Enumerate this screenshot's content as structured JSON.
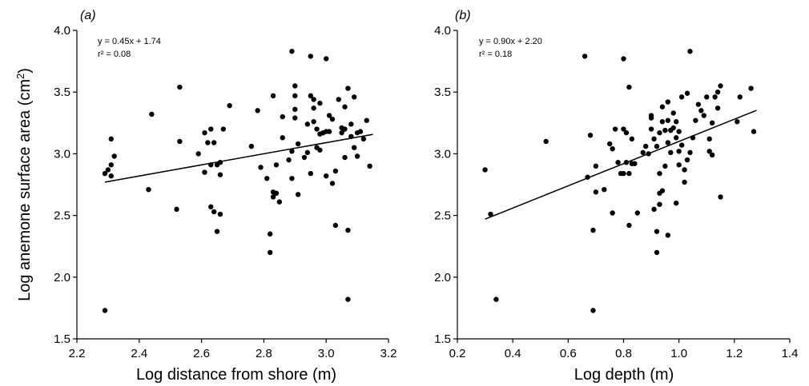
{
  "figure": {
    "ylabel": "Log anemone surface area (cm²)",
    "ylabel_base": "Log anemone surface area (cm",
    "ylabel_sup": "2",
    "ylabel_tail": ")"
  },
  "panels": [
    {
      "label": "(a)",
      "equation": "y = 0.45x + 1.74",
      "r2": "r² = 0.08",
      "xlabel": "Log distance from shore (m)"
    },
    {
      "label": "(b)",
      "equation": "y = 0.90x + 2.20",
      "r2": "r² = 0.18",
      "xlabel": "Log depth (m)"
    }
  ],
  "chart_data": [
    {
      "type": "scatter",
      "title": "(a)",
      "xlabel": "Log distance from shore (m)",
      "ylabel": "Log anemone surface area (cm²)",
      "xlim": [
        2.2,
        3.2
      ],
      "ylim": [
        1.5,
        4.0
      ],
      "xticks": [
        "2.2",
        "2.4",
        "2.6",
        "2.8",
        "3.0",
        "3.2"
      ],
      "yticks": [
        "1.5",
        "2.0",
        "2.5",
        "3.0",
        "3.5",
        "4.0"
      ],
      "grid": false,
      "annotations": [
        "y = 0.45x + 1.74",
        "r² = 0.08"
      ],
      "trendline": {
        "slope": 0.45,
        "intercept": 1.74,
        "x_range": [
          2.29,
          3.15
        ]
      },
      "points": [
        [
          2.29,
          1.73
        ],
        [
          2.29,
          2.84
        ],
        [
          2.3,
          2.87
        ],
        [
          2.31,
          2.91
        ],
        [
          2.31,
          2.82
        ],
        [
          2.31,
          3.12
        ],
        [
          2.32,
          2.98
        ],
        [
          2.43,
          2.71
        ],
        [
          2.44,
          3.32
        ],
        [
          2.52,
          2.55
        ],
        [
          2.53,
          3.1
        ],
        [
          2.53,
          3.54
        ],
        [
          2.59,
          3.0
        ],
        [
          2.61,
          2.85
        ],
        [
          2.61,
          3.17
        ],
        [
          2.62,
          3.09
        ],
        [
          2.63,
          3.2
        ],
        [
          2.63,
          2.57
        ],
        [
          2.63,
          2.91
        ],
        [
          2.64,
          3.09
        ],
        [
          2.64,
          2.53
        ],
        [
          2.65,
          2.37
        ],
        [
          2.65,
          2.91
        ],
        [
          2.66,
          2.51
        ],
        [
          2.66,
          2.83
        ],
        [
          2.66,
          2.93
        ],
        [
          2.67,
          3.2
        ],
        [
          2.69,
          3.39
        ],
        [
          2.76,
          3.06
        ],
        [
          2.78,
          3.35
        ],
        [
          2.79,
          2.89
        ],
        [
          2.81,
          2.8
        ],
        [
          2.82,
          2.2
        ],
        [
          2.82,
          2.35
        ],
        [
          2.83,
          2.65
        ],
        [
          2.83,
          2.69
        ],
        [
          2.84,
          2.68
        ],
        [
          2.83,
          3.47
        ],
        [
          2.84,
          2.91
        ],
        [
          2.85,
          2.61
        ],
        [
          2.86,
          3.13
        ],
        [
          2.86,
          3.3
        ],
        [
          2.88,
          2.95
        ],
        [
          2.89,
          3.83
        ],
        [
          2.89,
          3.02
        ],
        [
          2.89,
          2.8
        ],
        [
          2.9,
          3.55
        ],
        [
          2.9,
          3.47
        ],
        [
          2.9,
          3.36
        ],
        [
          2.9,
          3.29
        ],
        [
          2.91,
          2.67
        ],
        [
          2.91,
          3.08
        ],
        [
          2.93,
          2.97
        ],
        [
          2.94,
          3.24
        ],
        [
          2.94,
          3.01
        ],
        [
          2.95,
          3.79
        ],
        [
          2.95,
          2.84
        ],
        [
          2.95,
          3.47
        ],
        [
          2.96,
          3.44
        ],
        [
          2.96,
          3.37
        ],
        [
          2.96,
          3.26
        ],
        [
          2.97,
          3.2
        ],
        [
          2.97,
          3.05
        ],
        [
          2.98,
          3.16
        ],
        [
          2.98,
          3.03
        ],
        [
          2.98,
          3.41
        ],
        [
          2.99,
          3.17
        ],
        [
          3.0,
          3.77
        ],
        [
          3.0,
          3.18
        ],
        [
          3.0,
          2.82
        ],
        [
          3.01,
          3.18
        ],
        [
          3.01,
          3.31
        ],
        [
          3.02,
          3.28
        ],
        [
          3.02,
          2.76
        ],
        [
          3.03,
          2.86
        ],
        [
          3.03,
          2.42
        ],
        [
          3.04,
          3.44
        ],
        [
          3.05,
          3.21
        ],
        [
          3.05,
          3.17
        ],
        [
          3.06,
          3.38
        ],
        [
          3.06,
          3.2
        ],
        [
          3.06,
          2.97
        ],
        [
          3.07,
          2.38
        ],
        [
          3.07,
          1.82
        ],
        [
          3.07,
          3.53
        ],
        [
          3.08,
          3.14
        ],
        [
          3.08,
          3.24
        ],
        [
          3.09,
          3.46
        ],
        [
          3.09,
          3.05
        ],
        [
          3.1,
          3.17
        ],
        [
          3.1,
          2.98
        ],
        [
          3.13,
          3.27
        ],
        [
          3.14,
          2.9
        ],
        [
          3.11,
          3.18
        ],
        [
          3.12,
          3.12
        ]
      ]
    },
    {
      "type": "scatter",
      "title": "(b)",
      "xlabel": "Log depth (m)",
      "ylabel": "Log anemone surface area (cm²)",
      "xlim": [
        0.2,
        1.4
      ],
      "ylim": [
        1.5,
        4.0
      ],
      "xticks": [
        "0.2",
        "0.4",
        "0.6",
        "0.8",
        "1.0",
        "1.2",
        "1.4"
      ],
      "yticks": [
        "1.5",
        "2.0",
        "2.5",
        "3.0",
        "3.5",
        "4.0"
      ],
      "grid": false,
      "annotations": [
        "y = 0.90x + 2.20",
        "r² = 0.18"
      ],
      "trendline": {
        "slope": 0.9,
        "intercept": 2.2,
        "x_range": [
          0.3,
          1.28
        ]
      },
      "points": [
        [
          0.3,
          2.87
        ],
        [
          0.32,
          2.51
        ],
        [
          0.34,
          1.82
        ],
        [
          0.52,
          3.1
        ],
        [
          0.66,
          3.79
        ],
        [
          0.67,
          2.81
        ],
        [
          0.68,
          3.15
        ],
        [
          0.69,
          1.73
        ],
        [
          0.69,
          2.38
        ],
        [
          0.7,
          2.9
        ],
        [
          0.7,
          2.69
        ],
        [
          0.73,
          2.71
        ],
        [
          0.75,
          3.08
        ],
        [
          0.76,
          2.52
        ],
        [
          0.76,
          3.04
        ],
        [
          0.77,
          3.2
        ],
        [
          0.78,
          2.93
        ],
        [
          0.79,
          2.84
        ],
        [
          0.8,
          3.77
        ],
        [
          0.8,
          2.84
        ],
        [
          0.8,
          3.2
        ],
        [
          0.81,
          2.93
        ],
        [
          0.81,
          3.17
        ],
        [
          0.82,
          2.84
        ],
        [
          0.82,
          3.54
        ],
        [
          0.82,
          2.42
        ],
        [
          0.83,
          2.92
        ],
        [
          0.83,
          3.12
        ],
        [
          0.84,
          2.92
        ],
        [
          0.85,
          2.52
        ],
        [
          0.87,
          3.01
        ],
        [
          0.88,
          3.06
        ],
        [
          0.89,
          3.0
        ],
        [
          0.9,
          3.29
        ],
        [
          0.9,
          3.2
        ],
        [
          0.9,
          3.31
        ],
        [
          0.91,
          2.55
        ],
        [
          0.91,
          3.12
        ],
        [
          0.92,
          3.06
        ],
        [
          0.92,
          2.2
        ],
        [
          0.92,
          2.37
        ],
        [
          0.93,
          2.84
        ],
        [
          0.93,
          3.17
        ],
        [
          0.93,
          2.68
        ],
        [
          0.93,
          2.59
        ],
        [
          0.94,
          3.26
        ],
        [
          0.94,
          3.38
        ],
        [
          0.94,
          2.7
        ],
        [
          0.95,
          3.19
        ],
        [
          0.95,
          2.9
        ],
        [
          0.96,
          3.09
        ],
        [
          0.96,
          3.27
        ],
        [
          0.96,
          2.34
        ],
        [
          0.96,
          3.42
        ],
        [
          0.97,
          3.19
        ],
        [
          0.97,
          3.01
        ],
        [
          0.98,
          3.33
        ],
        [
          0.98,
          3.21
        ],
        [
          0.99,
          2.6
        ],
        [
          0.99,
          3.13
        ],
        [
          1.0,
          2.91
        ],
        [
          1.0,
          3.18
        ],
        [
          1.01,
          3.46
        ],
        [
          1.01,
          3.07
        ],
        [
          1.02,
          2.87
        ],
        [
          1.02,
          2.77
        ],
        [
          1.03,
          3.49
        ],
        [
          1.03,
          2.95
        ],
        [
          1.04,
          3.83
        ],
        [
          1.04,
          3.01
        ],
        [
          1.05,
          3.13
        ],
        [
          1.06,
          3.27
        ],
        [
          1.08,
          3.35
        ],
        [
          1.09,
          3.31
        ],
        [
          1.1,
          3.46
        ],
        [
          1.11,
          3.02
        ],
        [
          1.11,
          3.12
        ],
        [
          1.12,
          3.25
        ],
        [
          1.12,
          2.99
        ],
        [
          1.13,
          3.46
        ],
        [
          1.14,
          3.37
        ],
        [
          1.14,
          3.5
        ],
        [
          1.15,
          3.55
        ],
        [
          1.15,
          2.65
        ],
        [
          1.21,
          3.26
        ],
        [
          1.22,
          3.46
        ],
        [
          1.26,
          3.53
        ],
        [
          1.27,
          3.18
        ],
        [
          1.0,
          3.02
        ],
        [
          0.99,
          3.26
        ],
        [
          1.07,
          3.4
        ]
      ]
    }
  ]
}
